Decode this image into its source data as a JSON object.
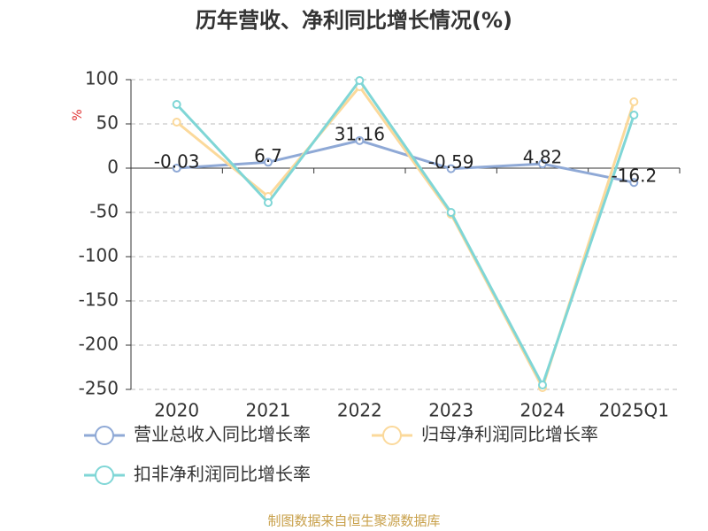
{
  "chart_data": {
    "type": "line",
    "title": "历年营收、净利同比增长情况(%)",
    "y_label": "%",
    "source": "制图数据来自恒生聚源数据库",
    "categories": [
      "2020",
      "2021",
      "2022",
      "2023",
      "2024",
      "2025Q1"
    ],
    "series": [
      {
        "name": "营业总收入同比增长率",
        "color": "#8fa9d6",
        "values": [
          -0.03,
          6.7,
          31.16,
          -0.59,
          4.82,
          -16.2
        ],
        "data_labels": true
      },
      {
        "name": "归母净利润同比增长率",
        "color": "#fbd99b",
        "values": [
          52,
          -32,
          92,
          -52,
          -248,
          75
        ]
      },
      {
        "name": "扣非净利润同比增长率",
        "color": "#7fd6d6",
        "values": [
          72,
          -39,
          99,
          -50,
          -245,
          60
        ]
      }
    ],
    "ylim": [
      -250,
      100
    ],
    "yticks": [
      100,
      50,
      0,
      -50,
      -100,
      -150,
      -200,
      -250
    ],
    "grid": true,
    "legend": "bottom"
  }
}
